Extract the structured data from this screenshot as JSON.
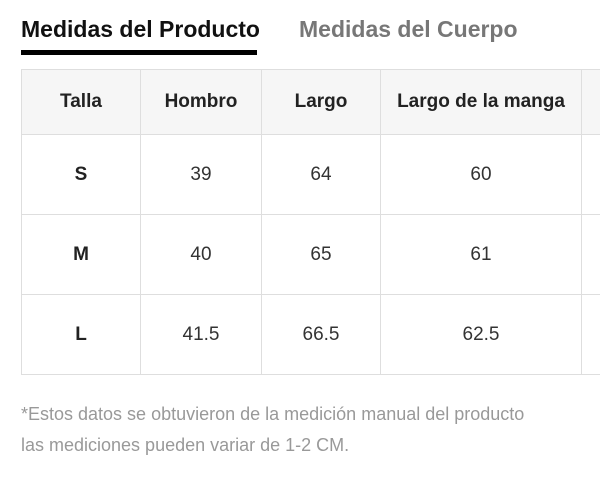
{
  "tabs": {
    "active_label": "Medidas del Producto",
    "inactive_label": "Medidas del Cuerpo"
  },
  "table": {
    "headers": [
      "Talla",
      "Hombro",
      "Largo",
      "Largo de la manga",
      ""
    ],
    "rows": [
      [
        "S",
        "39",
        "64",
        "60",
        ""
      ],
      [
        "M",
        "40",
        "65",
        "61",
        ""
      ],
      [
        "L",
        "41.5",
        "66.5",
        "62.5",
        ""
      ]
    ]
  },
  "note": {
    "line1": "*Estos datos se obtuvieron de la medición manual del producto",
    "line2": "las mediciones pueden variar de 1-2 CM."
  },
  "colors": {
    "active_tab": "#111111",
    "inactive_tab": "#777777",
    "header_bg": "#f6f6f6",
    "border": "#dedede",
    "note_text": "#999999"
  }
}
